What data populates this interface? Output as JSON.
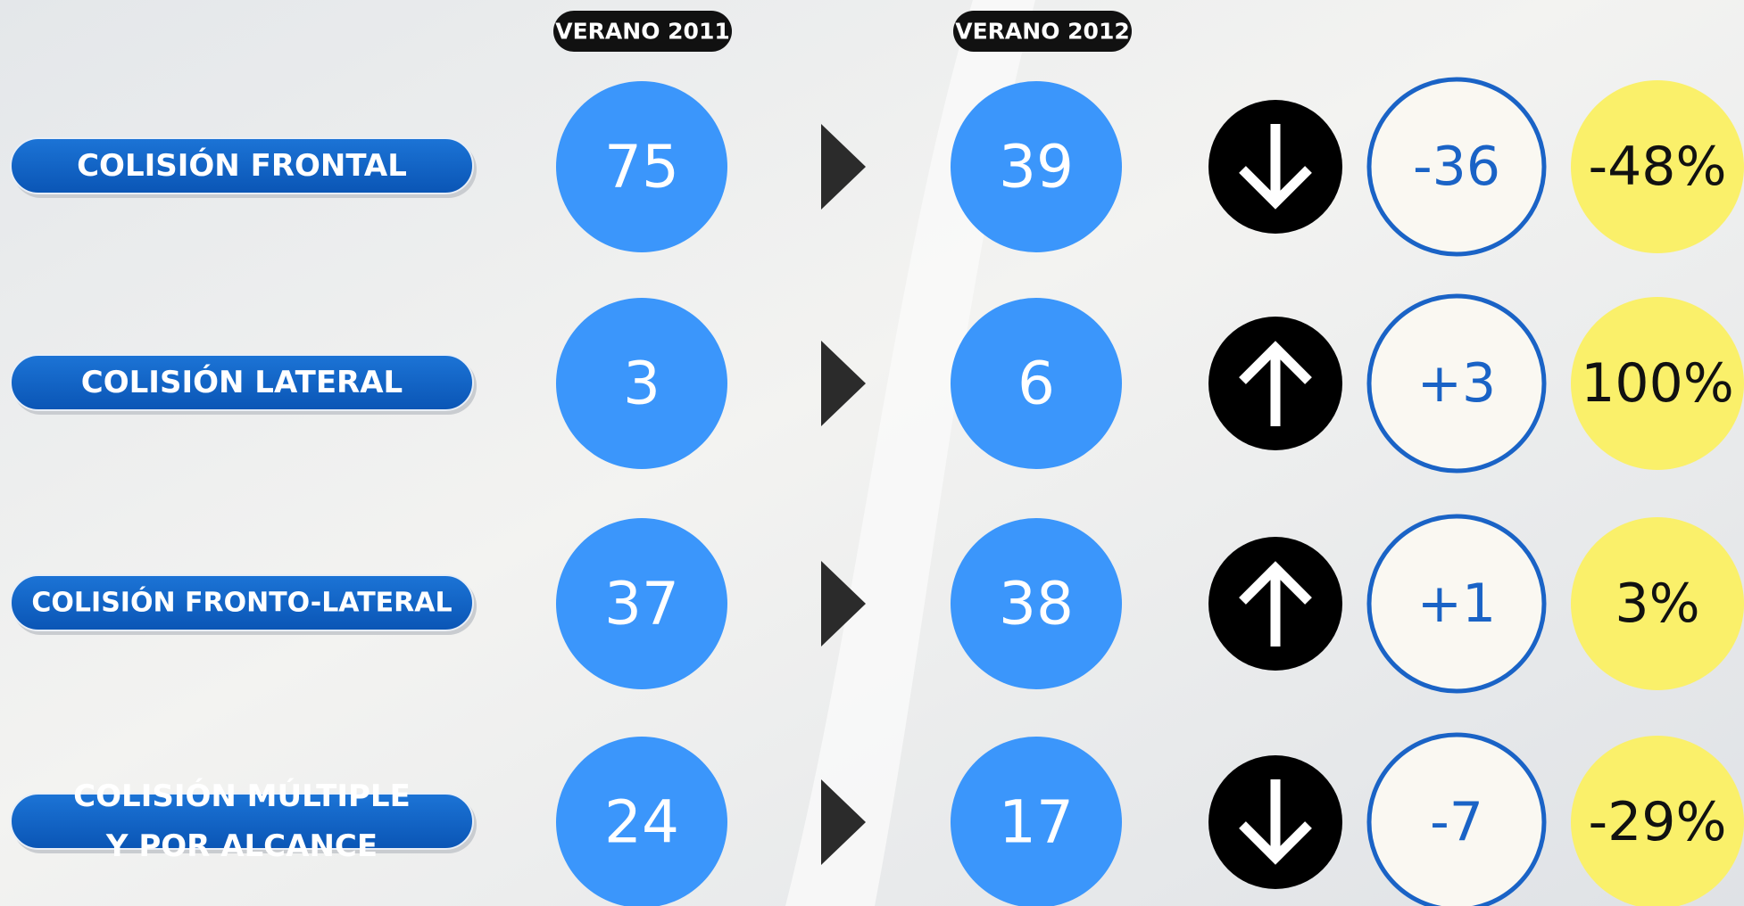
{
  "headers": [
    "VERANO 2011",
    "VERANO 2012"
  ],
  "rows": [
    {
      "label": [
        "COLISIÓN FRONTAL"
      ],
      "verano_2011": "75",
      "verano_2012": "39",
      "diff": "-36",
      "pct": "-48%"
    },
    {
      "label": [
        "COLISIÓN LATERAL"
      ],
      "verano_2011": "3",
      "verano_2012": "6",
      "diff": "+3",
      "pct": "100%"
    },
    {
      "label": [
        "COLISIÓN FRONTO-LATERAL"
      ],
      "verano_2011": "37",
      "verano_2012": "38",
      "diff": "+1",
      "pct": "3%"
    },
    {
      "label": [
        "COLISIÓN MÚLTIPLE",
        "Y POR ALCANCE"
      ],
      "verano_2011": "24",
      "verano_2012": "17",
      "diff": "-7",
      "pct": "-29%"
    }
  ]
}
